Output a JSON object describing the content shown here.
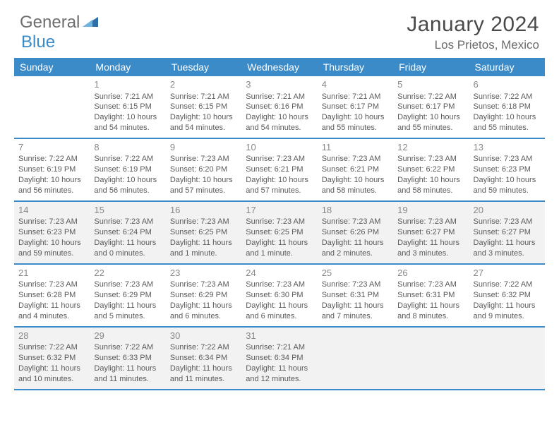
{
  "brand": {
    "part1": "General",
    "part2": "Blue"
  },
  "title": "January 2024",
  "location": "Los Prietos, Mexico",
  "header_bg": "#3b8bc9",
  "shade_bg": "#f2f2f2",
  "daynames": [
    "Sunday",
    "Monday",
    "Tuesday",
    "Wednesday",
    "Thursday",
    "Friday",
    "Saturday"
  ],
  "weeks": [
    [
      {
        "empty": true
      },
      {
        "n": "1",
        "sr": "Sunrise: 7:21 AM",
        "ss": "Sunset: 6:15 PM",
        "d1": "Daylight: 10 hours",
        "d2": "and 54 minutes."
      },
      {
        "n": "2",
        "sr": "Sunrise: 7:21 AM",
        "ss": "Sunset: 6:15 PM",
        "d1": "Daylight: 10 hours",
        "d2": "and 54 minutes."
      },
      {
        "n": "3",
        "sr": "Sunrise: 7:21 AM",
        "ss": "Sunset: 6:16 PM",
        "d1": "Daylight: 10 hours",
        "d2": "and 54 minutes."
      },
      {
        "n": "4",
        "sr": "Sunrise: 7:21 AM",
        "ss": "Sunset: 6:17 PM",
        "d1": "Daylight: 10 hours",
        "d2": "and 55 minutes."
      },
      {
        "n": "5",
        "sr": "Sunrise: 7:22 AM",
        "ss": "Sunset: 6:17 PM",
        "d1": "Daylight: 10 hours",
        "d2": "and 55 minutes."
      },
      {
        "n": "6",
        "sr": "Sunrise: 7:22 AM",
        "ss": "Sunset: 6:18 PM",
        "d1": "Daylight: 10 hours",
        "d2": "and 55 minutes."
      }
    ],
    [
      {
        "n": "7",
        "sr": "Sunrise: 7:22 AM",
        "ss": "Sunset: 6:19 PM",
        "d1": "Daylight: 10 hours",
        "d2": "and 56 minutes."
      },
      {
        "n": "8",
        "sr": "Sunrise: 7:22 AM",
        "ss": "Sunset: 6:19 PM",
        "d1": "Daylight: 10 hours",
        "d2": "and 56 minutes."
      },
      {
        "n": "9",
        "sr": "Sunrise: 7:23 AM",
        "ss": "Sunset: 6:20 PM",
        "d1": "Daylight: 10 hours",
        "d2": "and 57 minutes."
      },
      {
        "n": "10",
        "sr": "Sunrise: 7:23 AM",
        "ss": "Sunset: 6:21 PM",
        "d1": "Daylight: 10 hours",
        "d2": "and 57 minutes."
      },
      {
        "n": "11",
        "sr": "Sunrise: 7:23 AM",
        "ss": "Sunset: 6:21 PM",
        "d1": "Daylight: 10 hours",
        "d2": "and 58 minutes."
      },
      {
        "n": "12",
        "sr": "Sunrise: 7:23 AM",
        "ss": "Sunset: 6:22 PM",
        "d1": "Daylight: 10 hours",
        "d2": "and 58 minutes."
      },
      {
        "n": "13",
        "sr": "Sunrise: 7:23 AM",
        "ss": "Sunset: 6:23 PM",
        "d1": "Daylight: 10 hours",
        "d2": "and 59 minutes."
      }
    ],
    [
      {
        "n": "14",
        "sr": "Sunrise: 7:23 AM",
        "ss": "Sunset: 6:23 PM",
        "d1": "Daylight: 10 hours",
        "d2": "and 59 minutes."
      },
      {
        "n": "15",
        "sr": "Sunrise: 7:23 AM",
        "ss": "Sunset: 6:24 PM",
        "d1": "Daylight: 11 hours",
        "d2": "and 0 minutes."
      },
      {
        "n": "16",
        "sr": "Sunrise: 7:23 AM",
        "ss": "Sunset: 6:25 PM",
        "d1": "Daylight: 11 hours",
        "d2": "and 1 minute."
      },
      {
        "n": "17",
        "sr": "Sunrise: 7:23 AM",
        "ss": "Sunset: 6:25 PM",
        "d1": "Daylight: 11 hours",
        "d2": "and 1 minute."
      },
      {
        "n": "18",
        "sr": "Sunrise: 7:23 AM",
        "ss": "Sunset: 6:26 PM",
        "d1": "Daylight: 11 hours",
        "d2": "and 2 minutes."
      },
      {
        "n": "19",
        "sr": "Sunrise: 7:23 AM",
        "ss": "Sunset: 6:27 PM",
        "d1": "Daylight: 11 hours",
        "d2": "and 3 minutes."
      },
      {
        "n": "20",
        "sr": "Sunrise: 7:23 AM",
        "ss": "Sunset: 6:27 PM",
        "d1": "Daylight: 11 hours",
        "d2": "and 3 minutes."
      }
    ],
    [
      {
        "n": "21",
        "sr": "Sunrise: 7:23 AM",
        "ss": "Sunset: 6:28 PM",
        "d1": "Daylight: 11 hours",
        "d2": "and 4 minutes."
      },
      {
        "n": "22",
        "sr": "Sunrise: 7:23 AM",
        "ss": "Sunset: 6:29 PM",
        "d1": "Daylight: 11 hours",
        "d2": "and 5 minutes."
      },
      {
        "n": "23",
        "sr": "Sunrise: 7:23 AM",
        "ss": "Sunset: 6:29 PM",
        "d1": "Daylight: 11 hours",
        "d2": "and 6 minutes."
      },
      {
        "n": "24",
        "sr": "Sunrise: 7:23 AM",
        "ss": "Sunset: 6:30 PM",
        "d1": "Daylight: 11 hours",
        "d2": "and 6 minutes."
      },
      {
        "n": "25",
        "sr": "Sunrise: 7:23 AM",
        "ss": "Sunset: 6:31 PM",
        "d1": "Daylight: 11 hours",
        "d2": "and 7 minutes."
      },
      {
        "n": "26",
        "sr": "Sunrise: 7:23 AM",
        "ss": "Sunset: 6:31 PM",
        "d1": "Daylight: 11 hours",
        "d2": "and 8 minutes."
      },
      {
        "n": "27",
        "sr": "Sunrise: 7:22 AM",
        "ss": "Sunset: 6:32 PM",
        "d1": "Daylight: 11 hours",
        "d2": "and 9 minutes."
      }
    ],
    [
      {
        "n": "28",
        "sr": "Sunrise: 7:22 AM",
        "ss": "Sunset: 6:32 PM",
        "d1": "Daylight: 11 hours",
        "d2": "and 10 minutes."
      },
      {
        "n": "29",
        "sr": "Sunrise: 7:22 AM",
        "ss": "Sunset: 6:33 PM",
        "d1": "Daylight: 11 hours",
        "d2": "and 11 minutes."
      },
      {
        "n": "30",
        "sr": "Sunrise: 7:22 AM",
        "ss": "Sunset: 6:34 PM",
        "d1": "Daylight: 11 hours",
        "d2": "and 11 minutes."
      },
      {
        "n": "31",
        "sr": "Sunrise: 7:21 AM",
        "ss": "Sunset: 6:34 PM",
        "d1": "Daylight: 11 hours",
        "d2": "and 12 minutes."
      },
      {
        "empty": true
      },
      {
        "empty": true
      },
      {
        "empty": true
      }
    ]
  ],
  "shaded_weeks": [
    2,
    4
  ]
}
